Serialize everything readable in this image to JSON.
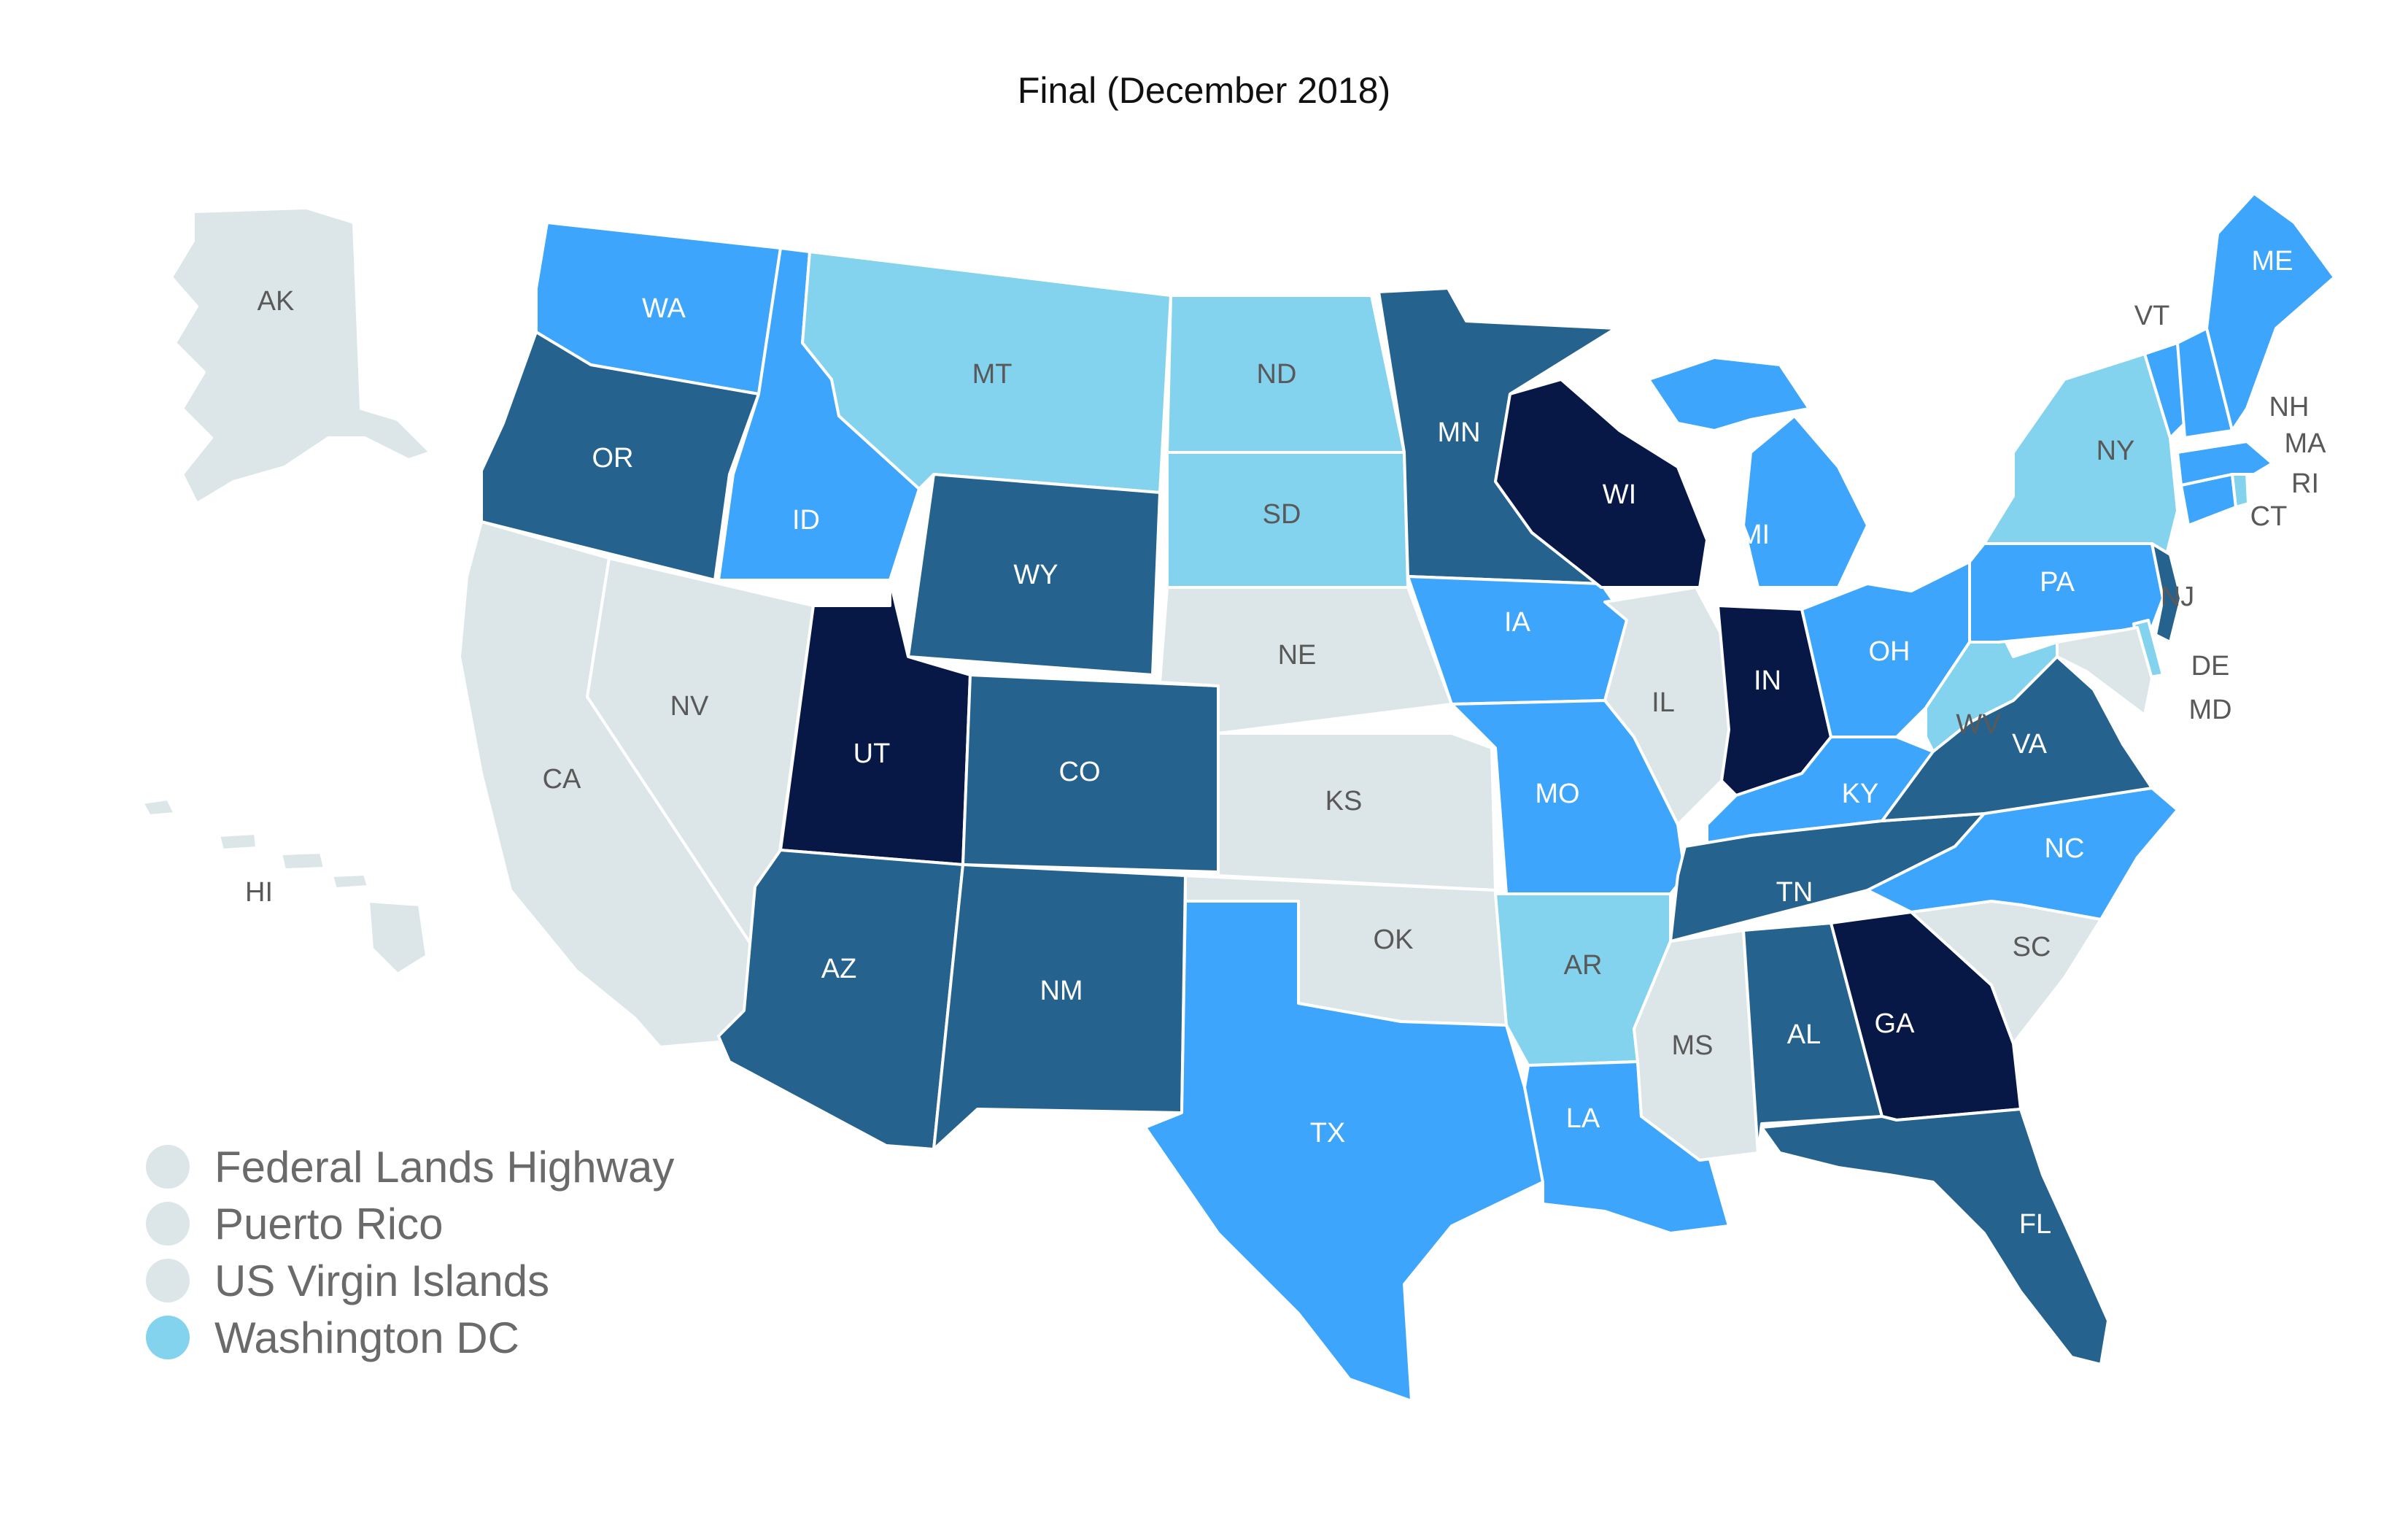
{
  "title": "Final (December 2018)",
  "colors": {
    "none": "#dce6e8",
    "light": "#83d2ee",
    "mid": "#3da5fb",
    "dark": "#25628e",
    "navy": "#071746",
    "label_light": "#595959",
    "label_dark": "#ffffff"
  },
  "legend": [
    {
      "label": "Federal Lands Highway",
      "level": "none"
    },
    {
      "label": "Puerto Rico",
      "level": "none"
    },
    {
      "label": "US Virgin Islands",
      "level": "none"
    },
    {
      "label": "Washington DC",
      "level": "light"
    }
  ],
  "states": [
    {
      "abbr": "AK",
      "level": "none"
    },
    {
      "abbr": "HI",
      "level": "none"
    },
    {
      "abbr": "WA",
      "level": "mid"
    },
    {
      "abbr": "OR",
      "level": "dark"
    },
    {
      "abbr": "CA",
      "level": "none"
    },
    {
      "abbr": "NV",
      "level": "none"
    },
    {
      "abbr": "ID",
      "level": "mid"
    },
    {
      "abbr": "MT",
      "level": "light"
    },
    {
      "abbr": "WY",
      "level": "dark"
    },
    {
      "abbr": "UT",
      "level": "navy"
    },
    {
      "abbr": "AZ",
      "level": "dark"
    },
    {
      "abbr": "CO",
      "level": "dark"
    },
    {
      "abbr": "NM",
      "level": "dark"
    },
    {
      "abbr": "ND",
      "level": "light"
    },
    {
      "abbr": "SD",
      "level": "light"
    },
    {
      "abbr": "NE",
      "level": "none"
    },
    {
      "abbr": "KS",
      "level": "none"
    },
    {
      "abbr": "OK",
      "level": "none"
    },
    {
      "abbr": "TX",
      "level": "mid"
    },
    {
      "abbr": "MN",
      "level": "dark"
    },
    {
      "abbr": "IA",
      "level": "mid"
    },
    {
      "abbr": "MO",
      "level": "mid"
    },
    {
      "abbr": "AR",
      "level": "light"
    },
    {
      "abbr": "LA",
      "level": "mid"
    },
    {
      "abbr": "WI",
      "level": "navy"
    },
    {
      "abbr": "IL",
      "level": "none"
    },
    {
      "abbr": "MI",
      "level": "mid"
    },
    {
      "abbr": "IN",
      "level": "navy"
    },
    {
      "abbr": "OH",
      "level": "mid"
    },
    {
      "abbr": "KY",
      "level": "mid"
    },
    {
      "abbr": "TN",
      "level": "dark"
    },
    {
      "abbr": "MS",
      "level": "none"
    },
    {
      "abbr": "AL",
      "level": "dark"
    },
    {
      "abbr": "GA",
      "level": "navy"
    },
    {
      "abbr": "FL",
      "level": "dark"
    },
    {
      "abbr": "SC",
      "level": "none"
    },
    {
      "abbr": "NC",
      "level": "mid"
    },
    {
      "abbr": "VA",
      "level": "dark"
    },
    {
      "abbr": "WV",
      "level": "light"
    },
    {
      "abbr": "PA",
      "level": "mid"
    },
    {
      "abbr": "NY",
      "level": "light"
    },
    {
      "abbr": "NJ",
      "level": "dark"
    },
    {
      "abbr": "DE",
      "level": "light"
    },
    {
      "abbr": "MD",
      "level": "none"
    },
    {
      "abbr": "CT",
      "level": "mid"
    },
    {
      "abbr": "RI",
      "level": "light"
    },
    {
      "abbr": "MA",
      "level": "mid"
    },
    {
      "abbr": "VT",
      "level": "mid"
    },
    {
      "abbr": "NH",
      "level": "mid"
    },
    {
      "abbr": "ME",
      "level": "mid"
    }
  ]
}
